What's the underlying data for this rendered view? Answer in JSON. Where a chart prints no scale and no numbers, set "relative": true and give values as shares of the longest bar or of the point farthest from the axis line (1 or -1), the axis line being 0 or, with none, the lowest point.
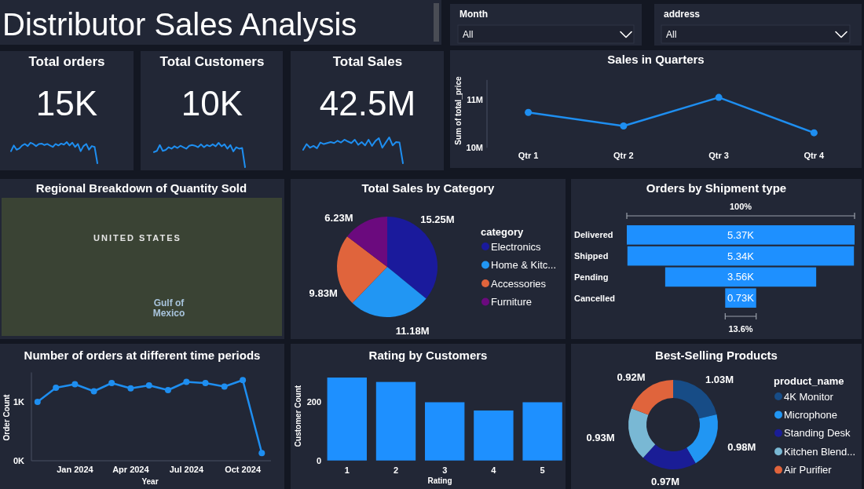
{
  "chart_data": [
    {
      "type": "other",
      "title": "Distributor Sales Analysis"
    },
    {
      "type": "other",
      "title": "Month",
      "annotations": [
        "All"
      ]
    },
    {
      "type": "other",
      "title": "address",
      "annotations": [
        "All"
      ]
    },
    {
      "type": "other",
      "title": "Total orders",
      "annotations": [
        "15K"
      ]
    },
    {
      "type": "line",
      "relative": true,
      "color": "#1e8ef0",
      "categories": [
        null,
        null,
        null,
        null,
        null,
        null,
        null,
        null,
        null,
        null,
        null,
        null,
        null,
        null,
        null,
        null,
        null,
        null,
        null,
        null,
        null,
        null,
        null,
        null,
        null,
        null,
        null,
        null,
        null,
        null,
        null,
        null
      ],
      "values": [
        0.57,
        0.84,
        0.64,
        0.7,
        0.84,
        0.91,
        0.81,
        0.97,
        0.91,
        0.81,
        0.91,
        0.93,
        0.86,
        0.91,
        0.84,
        0.77,
        0.91,
        0.84,
        0.93,
        0.88,
        1,
        0.84,
        0.97,
        0.77,
        0.91,
        0.57,
        0.81,
        0.91,
        0.64,
        0.81,
        0.77,
        0
      ]
    },
    {
      "type": "other",
      "title": "Total Customers",
      "annotations": [
        "10K"
      ]
    },
    {
      "type": "line",
      "relative": true,
      "color": "#1e8ef0",
      "categories": [
        null,
        null,
        null,
        null,
        null,
        null,
        null,
        null,
        null,
        null,
        null,
        null,
        null,
        null,
        null,
        null,
        null,
        null,
        null,
        null,
        null,
        null,
        null,
        null,
        null,
        null,
        null,
        null,
        null,
        null,
        null,
        null
      ],
      "values": [
        0.62,
        0.67,
        0.91,
        0.67,
        0.71,
        0.82,
        0.76,
        0.86,
        0.79,
        0.88,
        0.82,
        0.76,
        0.88,
        0.91,
        0.88,
        0.82,
        0.94,
        0.82,
        0.91,
        0.86,
        0.94,
        0.86,
        1,
        0.86,
        0.94,
        0.76,
        0.91,
        0.65,
        0.82,
        0.76,
        0.79,
        0
      ]
    },
    {
      "type": "other",
      "title": "Total Sales",
      "annotations": [
        "42.5M"
      ]
    },
    {
      "type": "line",
      "relative": true,
      "color": "#1e8ef0",
      "categories": [
        null,
        null,
        null,
        null,
        null,
        null,
        null,
        null,
        null,
        null,
        null,
        null,
        null,
        null,
        null,
        null,
        null,
        null,
        null,
        null,
        null,
        null,
        null,
        null,
        null,
        null,
        null,
        null,
        null,
        null
      ],
      "values": [
        0.52,
        0.74,
        0.6,
        0.67,
        0.58,
        0.8,
        0.74,
        0.78,
        0.82,
        0.78,
        0.87,
        0.8,
        0.91,
        0.84,
        0.78,
        0.91,
        0.71,
        0.82,
        0.69,
        0.91,
        0.67,
        0.86,
        0.97,
        0.6,
        0.8,
        1,
        0.69,
        0.82,
        0.8,
        0
      ]
    },
    {
      "type": "line",
      "title": "Sales in Quarters",
      "ylabel": "Sum of total_price",
      "categories": [
        "Qtr 1",
        "Qtr 2",
        "Qtr 3",
        "Qtr 4"
      ],
      "values": [
        10.73,
        10.45,
        11.04,
        10.31
      ],
      "color": "#1e8ef0",
      "ylim": [
        10,
        11.4
      ],
      "yticks": [
        {
          "value": 10,
          "label": "10M"
        },
        {
          "value": 11,
          "label": "11M"
        }
      ],
      "marker": "circle"
    },
    {
      "type": "other",
      "title": "Regional Breakdown of Quantity Sold",
      "annotations": [
        "UNITED STATES",
        "Gulf of Mexico"
      ]
    },
    {
      "type": "pie",
      "title": "Total Sales by Category",
      "categories": [
        "Electronics",
        "Home & Kitc...",
        "Accessories",
        "Furniture"
      ],
      "values": [
        15.25,
        11.18,
        9.83,
        6.23
      ],
      "colors": [
        "#1a1a9c",
        "#2196f3",
        "#e0643c",
        "#6b0a7e"
      ],
      "value_labels": [
        "15.25M",
        "11.18M",
        "9.83M",
        "6.23M"
      ],
      "legend": "right",
      "legend_title": "category"
    },
    {
      "type": "other",
      "title": "Orders by Shipment type",
      "categories": [
        "Delivered",
        "Shipped",
        "Pending",
        "Cancelled"
      ],
      "values": [
        5.37,
        5.34,
        3.56,
        0.73
      ],
      "value_labels": [
        "5.37K",
        "5.34K",
        "3.56K",
        "0.73K"
      ],
      "color": "#1e90ff",
      "annotations": [
        "100%",
        "13.6%"
      ]
    },
    {
      "type": "line",
      "title": "Number of orders at different time periods",
      "xlabel": "Year",
      "ylabel": "Order Count",
      "x": [
        "2023-11",
        "2023-12",
        "2024-01",
        "2024-02",
        "2024-03",
        "2024-04",
        "2024-05",
        "2024-06",
        "2024-07",
        "2024-08",
        "2024-09",
        "2024-10",
        "2024-11"
      ],
      "values": [
        1000,
        1240,
        1300,
        1180,
        1320,
        1230,
        1280,
        1200,
        1340,
        1320,
        1260,
        1370,
        130
      ],
      "color": "#1e8ef0",
      "marker": "circle",
      "xlim": [
        "2023-10-22",
        "2024-11-16"
      ],
      "xticks": [
        {
          "value": "2024-01",
          "label": "Jan 2024"
        },
        {
          "value": "2024-04",
          "label": "Apr 2024"
        },
        {
          "value": "2024-07",
          "label": "Jul 2024"
        },
        {
          "value": "2024-10",
          "label": "Oct 2024"
        }
      ],
      "ylim": [
        0,
        1500
      ],
      "yticks": [
        {
          "value": 0,
          "label": "0K"
        },
        {
          "value": 1000,
          "label": "1K"
        }
      ]
    },
    {
      "type": "bar",
      "title": "Rating by Customers",
      "xlabel": "Rating",
      "ylabel": "Customer Count",
      "categories": [
        "1",
        "2",
        "3",
        "4",
        "5"
      ],
      "values": [
        282,
        267,
        198,
        170,
        198
      ],
      "color": "#1e90ff",
      "ylim": [
        0,
        290
      ],
      "yticks": [
        0,
        200
      ]
    },
    {
      "type": "donut",
      "title": "Best-Selling Products",
      "categories": [
        "4K Monitor",
        "Microphone",
        "Standing Desk",
        "Kitchen Blend...",
        "Air Purifier"
      ],
      "values": [
        1.03,
        0.98,
        0.97,
        0.93,
        0.92
      ],
      "colors": [
        "#174c86",
        "#2196f3",
        "#1a1d96",
        "#79b8d4",
        "#e0643c"
      ],
      "value_labels": [
        "1.03M",
        "0.98M",
        "0.97M",
        "0.93M",
        "0.92M"
      ],
      "legend": "right",
      "legend_title": "product_name"
    }
  ]
}
